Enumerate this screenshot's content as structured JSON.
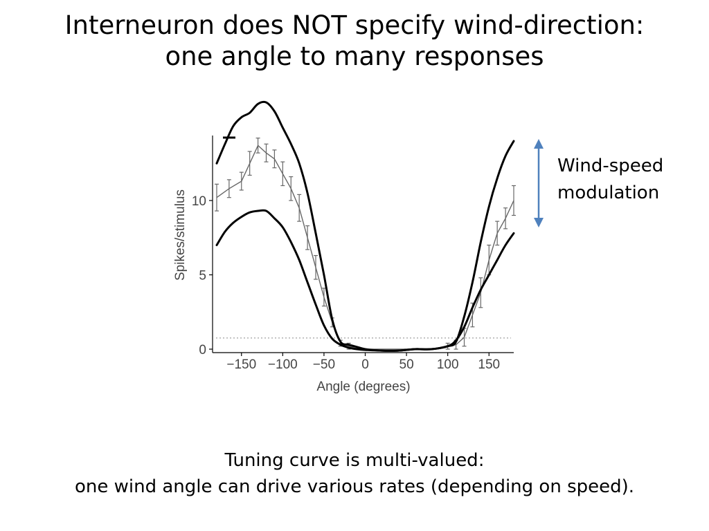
{
  "slide": {
    "title_line1": "Interneuron does NOT specify wind-direction:",
    "title_line2": "one angle to many responses",
    "annotation_line1": "Wind-speed",
    "annotation_line2": "modulation",
    "caption_line1": "Tuning curve is multi-valued:",
    "caption_line2": "one wind angle can drive various rates (depending on speed)."
  },
  "colors": {
    "arrow": "#4f81bd",
    "data_line": "#666666",
    "envelope": "#000000",
    "baseline": "#888888"
  },
  "chart_data": {
    "type": "line",
    "xlabel": "Angle (degrees)",
    "ylabel": "Spikes/stimulus",
    "xlim": [
      -180,
      180
    ],
    "ylim": [
      0,
      14
    ],
    "xticks": [
      -150,
      -100,
      -50,
      0,
      50,
      100,
      150
    ],
    "xtick_labels": [
      "−150",
      "−100",
      "−50",
      "0",
      "50",
      "100",
      "150"
    ],
    "yticks": [
      0,
      5,
      10
    ],
    "ytick_labels": [
      "0",
      "5",
      "10"
    ],
    "baseline": 0.75,
    "grid": false,
    "series": [
      {
        "role": "measured",
        "x": [
          -180,
          -165,
          -150,
          -140,
          -130,
          -120,
          -110,
          -100,
          -90,
          -80,
          -70,
          -60,
          -50,
          -40,
          -30,
          -20,
          -10,
          0,
          20,
          40,
          60,
          80,
          100,
          110,
          120,
          130,
          140,
          150,
          160,
          170,
          180
        ],
        "y": [
          10.2,
          10.8,
          11.3,
          12.5,
          13.7,
          13.2,
          12.8,
          11.8,
          10.8,
          9.5,
          7.5,
          5.5,
          3.5,
          1.8,
          0.4,
          0.2,
          0.05,
          0.0,
          0.0,
          0.0,
          0.0,
          0.0,
          0.2,
          0.3,
          0.8,
          2.3,
          3.8,
          6.0,
          7.8,
          8.8,
          10.0
        ],
        "err": [
          0.9,
          0.6,
          0.6,
          0.8,
          0.5,
          0.6,
          0.6,
          0.8,
          0.8,
          0.9,
          0.8,
          0.8,
          0.6,
          0.3,
          0.2,
          0.2,
          0,
          0,
          0,
          0,
          0,
          0,
          0.2,
          0.3,
          0.6,
          0.8,
          1.0,
          1.0,
          0.8,
          0.7,
          1.0
        ]
      },
      {
        "role": "upper-envelope",
        "x": [
          -180,
          -170,
          -160,
          -150,
          -140,
          -130,
          -120,
          -110,
          -100,
          -90,
          -80,
          -70,
          -60,
          -50,
          -40,
          -30,
          -20,
          -10,
          0,
          20,
          40,
          60,
          80,
          100,
          110,
          120,
          130,
          140,
          150,
          160,
          170,
          180
        ],
        "y": [
          12.5,
          13.8,
          15.0,
          15.6,
          15.9,
          16.5,
          16.6,
          16.0,
          14.9,
          13.8,
          12.5,
          10.5,
          7.8,
          5.0,
          2.0,
          0.5,
          0.3,
          0.15,
          0.0,
          -0.1,
          -0.1,
          0.0,
          0.0,
          0.2,
          0.5,
          2.2,
          4.5,
          7.2,
          9.6,
          11.5,
          13.0,
          14.0
        ]
      },
      {
        "role": "lower-envelope",
        "x": [
          -180,
          -170,
          -160,
          -150,
          -140,
          -130,
          -120,
          -110,
          -100,
          -90,
          -80,
          -70,
          -60,
          -50,
          -40,
          -30,
          -20,
          -10,
          0,
          20,
          40,
          60,
          80,
          100,
          110,
          120,
          130,
          140,
          150,
          160,
          170,
          180
        ],
        "y": [
          7.0,
          7.9,
          8.5,
          8.9,
          9.2,
          9.3,
          9.3,
          8.8,
          8.2,
          7.2,
          6.0,
          4.5,
          3.0,
          1.6,
          0.7,
          0.3,
          0.1,
          0.0,
          -0.05,
          -0.1,
          -0.1,
          0.0,
          0.0,
          0.2,
          0.6,
          1.5,
          2.8,
          4.0,
          5.0,
          6.0,
          7.0,
          7.8
        ]
      }
    ]
  }
}
